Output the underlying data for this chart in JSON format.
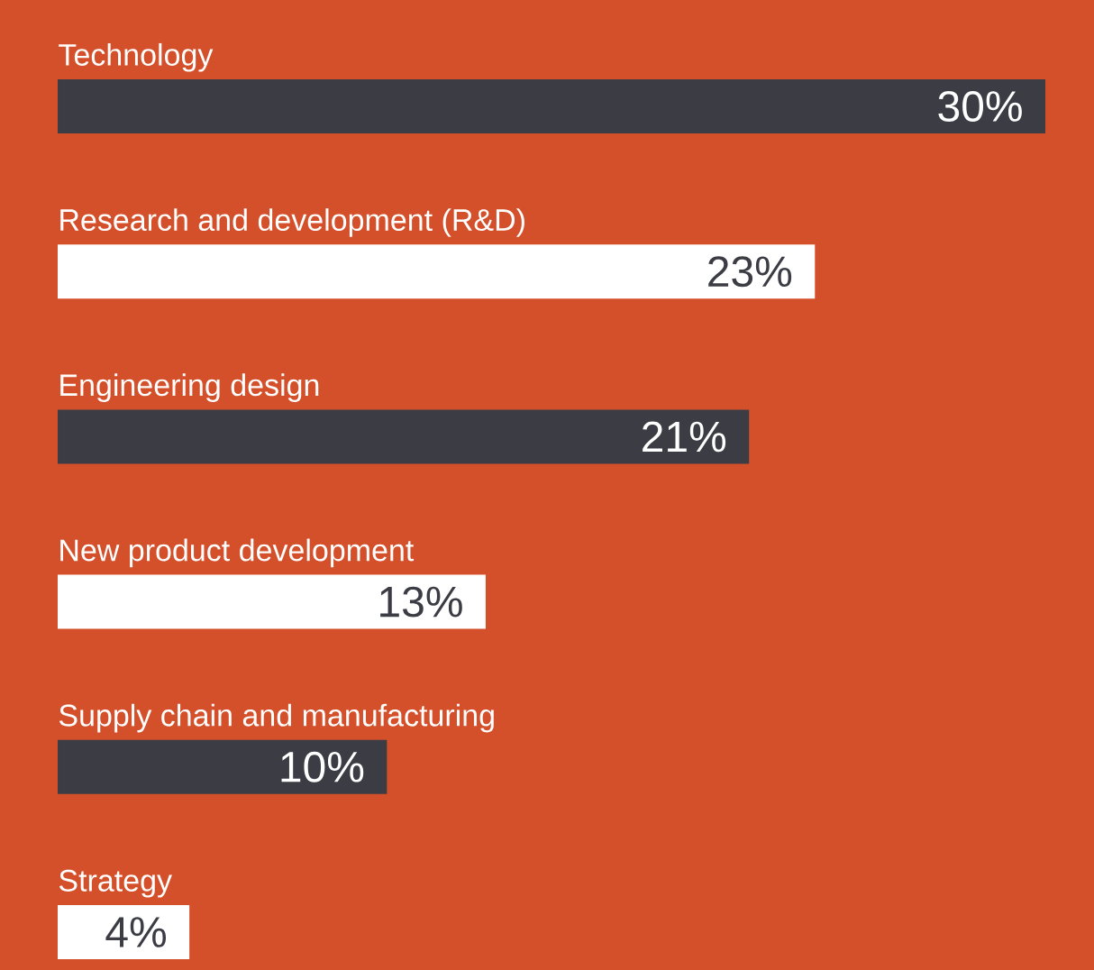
{
  "chart_data": {
    "type": "bar",
    "orientation": "horizontal",
    "categories": [
      "Technology",
      "Research and development (R&D)",
      "Engineering design",
      "New product development",
      "Supply chain and manufacturing",
      "Strategy"
    ],
    "values": [
      30,
      23,
      21,
      13,
      10,
      4
    ],
    "value_labels": [
      "30%",
      "23%",
      "21%",
      "13%",
      "10%",
      "4%"
    ],
    "colors": [
      "#3b3c44",
      "#ffffff",
      "#3b3c44",
      "#ffffff",
      "#3b3c44",
      "#ffffff"
    ],
    "tick_labels": false
  }
}
